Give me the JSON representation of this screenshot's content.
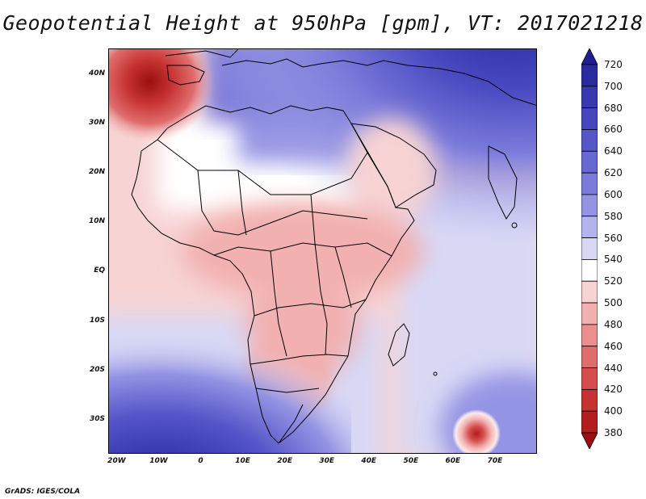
{
  "title": "Geopotential Height at 950hPa [gpm], VT: 2017021218",
  "footer": "GrADS: IGES/COLA",
  "map": {
    "lon_range": [
      -22,
      80
    ],
    "lat_range": [
      -37,
      45
    ],
    "y_tick_labels": [
      {
        "label": "40N",
        "lat": 40
      },
      {
        "label": "30N",
        "lat": 30
      },
      {
        "label": "20N",
        "lat": 20
      },
      {
        "label": "10N",
        "lat": 10
      },
      {
        "label": "EQ",
        "lat": 0
      },
      {
        "label": "10S",
        "lat": -10
      },
      {
        "label": "20S",
        "lat": -20
      },
      {
        "label": "30S",
        "lat": -30
      }
    ],
    "x_tick_labels": [
      {
        "label": "20W",
        "lon": -20
      },
      {
        "label": "10W",
        "lon": -10
      },
      {
        "label": "0",
        "lon": 0
      },
      {
        "label": "10E",
        "lon": 10
      },
      {
        "label": "20E",
        "lon": 20
      },
      {
        "label": "30E",
        "lon": 30
      },
      {
        "label": "40E",
        "lon": 40
      },
      {
        "label": "50E",
        "lon": 50
      },
      {
        "label": "60E",
        "lon": 60
      },
      {
        "label": "70E",
        "lon": 70
      }
    ],
    "highlights": [
      {
        "name": "low-iberia",
        "lon": -13,
        "lat": 40,
        "value": 400
      },
      {
        "name": "low-mascarene",
        "lon": 65.5,
        "lat": -32.5,
        "value": 390
      }
    ]
  },
  "colorbar": {
    "levels": [
      "720",
      "700",
      "680",
      "660",
      "640",
      "620",
      "600",
      "580",
      "560",
      "540",
      "520",
      "500",
      "480",
      "460",
      "440",
      "420",
      "400",
      "380"
    ],
    "colors": [
      "#1f1f8f",
      "#2b2ba0",
      "#3838b0",
      "#4646bf",
      "#5656c9",
      "#6868d3",
      "#7b7bdb",
      "#9494e4",
      "#b4b4ec",
      "#d8d8f5",
      "#ffffff",
      "#f7d3d3",
      "#f2b0b0",
      "#ea8e8e",
      "#e06d6d",
      "#d54d4d",
      "#c63232",
      "#b31d1d",
      "#9a1010"
    ]
  }
}
